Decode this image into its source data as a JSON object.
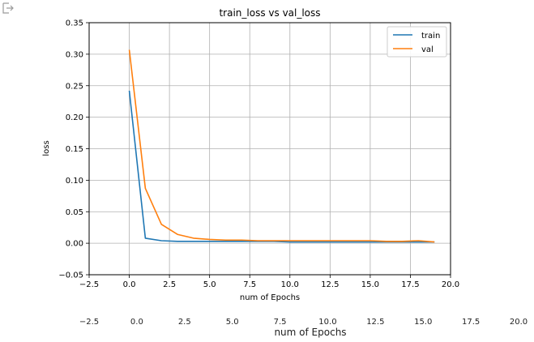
{
  "output_icon": "output-arrow-icon",
  "chart_data": {
    "type": "line",
    "title": "train_loss vs val_loss",
    "xlabel": "num of Epochs",
    "ylabel": "loss",
    "xlim": [
      -2.5,
      20.0
    ],
    "ylim": [
      -0.05,
      0.35
    ],
    "xticks": [
      -2.5,
      0.0,
      2.5,
      5.0,
      7.5,
      10.0,
      12.5,
      15.0,
      17.5,
      20.0
    ],
    "yticks": [
      -0.05,
      0.0,
      0.05,
      0.1,
      0.15,
      0.2,
      0.25,
      0.3,
      0.35
    ],
    "xtick_labels": [
      "−2.5",
      "0.0",
      "2.5",
      "5.0",
      "7.5",
      "10.0",
      "12.5",
      "15.0",
      "17.5",
      "20.0"
    ],
    "ytick_labels": [
      "−0.05",
      "0.00",
      "0.05",
      "0.10",
      "0.15",
      "0.20",
      "0.25",
      "0.30",
      "0.35"
    ],
    "grid": true,
    "legend_position": "top-right",
    "x": [
      0,
      1,
      2,
      3,
      4,
      5,
      6,
      7,
      8,
      9,
      10,
      11,
      12,
      13,
      14,
      15,
      16,
      17,
      18,
      19
    ],
    "series": [
      {
        "name": "train",
        "color": "#1f77b4",
        "values": [
          0.242,
          0.008,
          0.004,
          0.003,
          0.003,
          0.003,
          0.003,
          0.003,
          0.003,
          0.003,
          0.002,
          0.002,
          0.002,
          0.002,
          0.002,
          0.002,
          0.002,
          0.002,
          0.002,
          0.002
        ]
      },
      {
        "name": "val",
        "color": "#ff7f0e",
        "values": [
          0.307,
          0.087,
          0.03,
          0.014,
          0.008,
          0.006,
          0.005,
          0.005,
          0.004,
          0.004,
          0.004,
          0.004,
          0.004,
          0.004,
          0.004,
          0.004,
          0.003,
          0.003,
          0.004,
          0.002
        ]
      }
    ]
  },
  "duplicate_axis": {
    "xtick_labels": [
      "−2.5",
      "0.0",
      "2.5",
      "5.0",
      "7.5",
      "10.0",
      "12.5",
      "15.0",
      "17.5",
      "20.0"
    ],
    "xlabel": "num of Epochs"
  }
}
